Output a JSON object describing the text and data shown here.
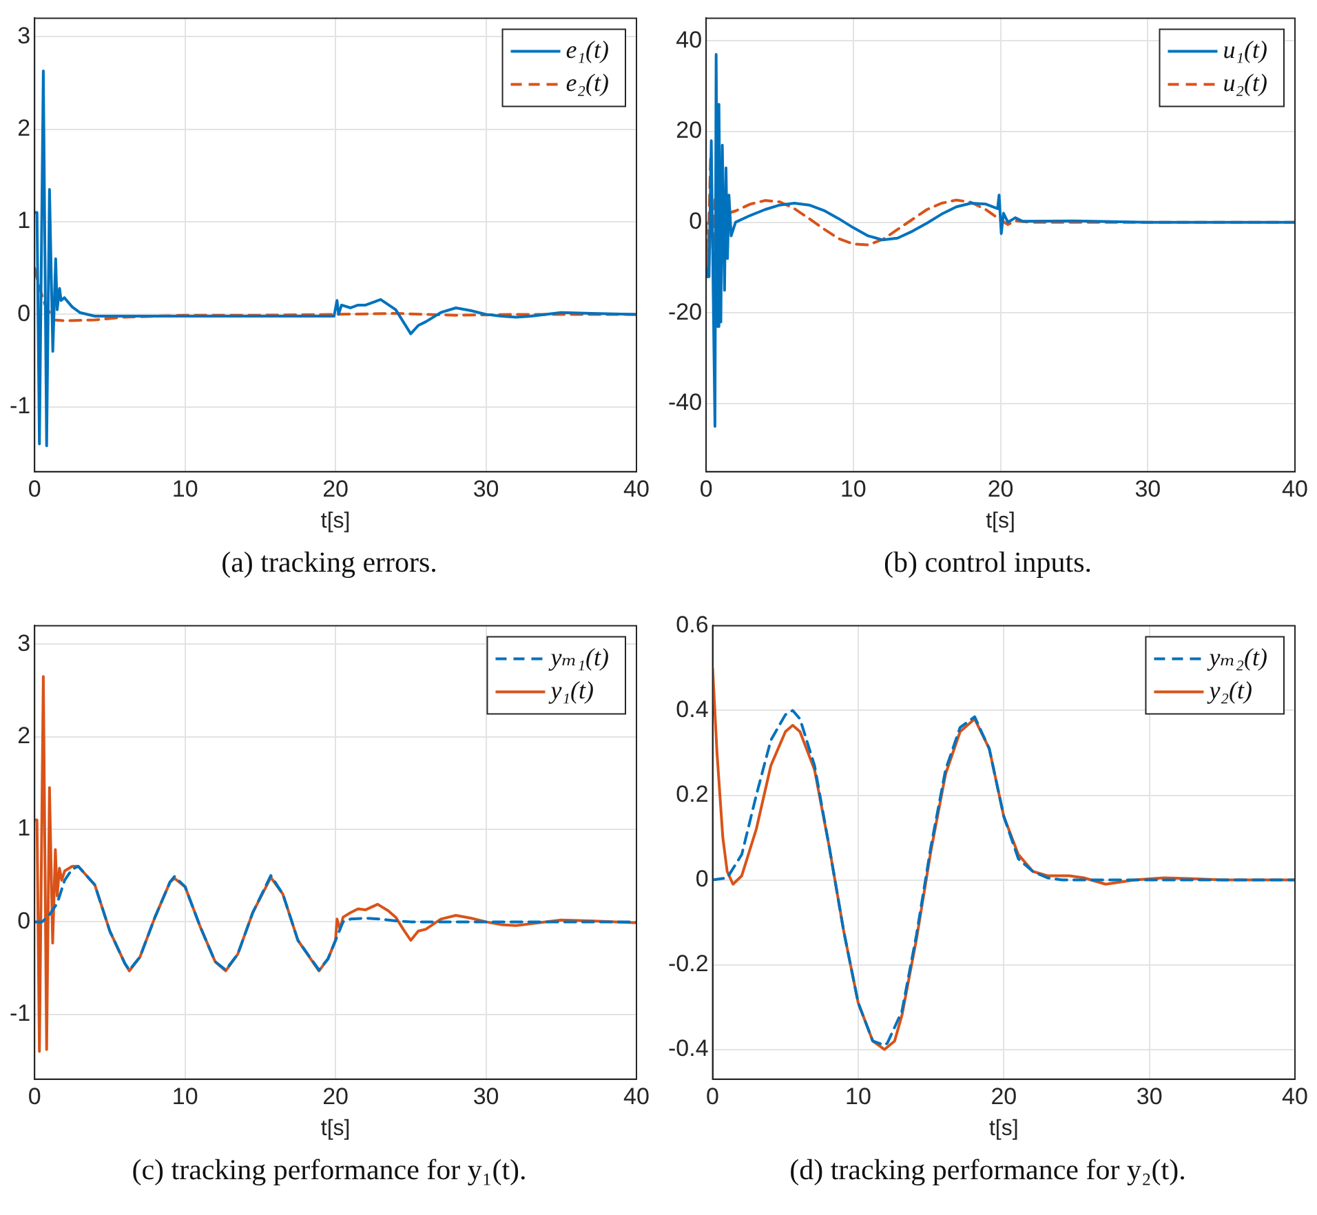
{
  "chart_data": [
    {
      "type": "line",
      "title": "(a) tracking errors.",
      "xlabel": "t[s]",
      "xlim": [
        0,
        40
      ],
      "xticks": [
        0,
        10,
        20,
        30,
        40
      ],
      "ylim": [
        -1.7,
        3.2
      ],
      "yticks": [
        -1,
        0,
        1,
        2,
        3
      ],
      "grid": true,
      "legend": "top right",
      "marker": "none",
      "series": [
        {
          "name": "e₁(t)",
          "color": "#0072bd",
          "line_style": "solid",
          "x": [
            0,
            0.16,
            0.32,
            0.58,
            0.8,
            0.99,
            1.21,
            1.4,
            1.5,
            1.66,
            1.76,
            1.98,
            2.5,
            3,
            4,
            6,
            10,
            15,
            19.9,
            20.1,
            20.2,
            20.4,
            21,
            21.5,
            22,
            23,
            24,
            24.5,
            25,
            25.5,
            26,
            27,
            28,
            29,
            30,
            31,
            32,
            33,
            35,
            37,
            40
          ],
          "values": [
            1.1,
            1.1,
            -1.4,
            2.63,
            -1.42,
            1.35,
            -0.4,
            0.6,
            0.05,
            0.28,
            0.15,
            0.18,
            0.08,
            0.02,
            -0.02,
            -0.02,
            -0.02,
            -0.02,
            -0.02,
            0.15,
            0,
            0.1,
            0.07,
            0.1,
            0.1,
            0.16,
            0.05,
            -0.08,
            -0.21,
            -0.12,
            -0.08,
            0.02,
            0.07,
            0.04,
            0,
            -0.02,
            -0.03,
            -0.02,
            0.02,
            0.01,
            0
          ]
        },
        {
          "name": "e₂(t)",
          "color": "#d95319",
          "line_style": "dashed",
          "x": [
            0,
            0.3,
            0.7,
            1,
            1.3,
            2,
            4,
            6,
            10,
            15,
            20,
            24,
            28,
            32,
            40
          ],
          "values": [
            0.5,
            0.3,
            0.1,
            0.02,
            -0.06,
            -0.07,
            -0.06,
            -0.03,
            -0.01,
            -0.01,
            0,
            0.01,
            -0.01,
            0,
            0
          ]
        }
      ]
    },
    {
      "type": "line",
      "title": "(b) control inputs.",
      "xlabel": "t[s]",
      "xlim": [
        0,
        40
      ],
      "xticks": [
        0,
        10,
        20,
        30,
        40
      ],
      "ylim": [
        -55,
        45
      ],
      "yticks": [
        -40,
        -20,
        0,
        20,
        40
      ],
      "grid": true,
      "legend": "top right",
      "marker": "none",
      "series": [
        {
          "name": "u₁(t)",
          "color": "#0072bd",
          "line_style": "solid",
          "x": [
            0,
            0.1,
            0.2,
            0.35,
            0.5,
            0.6,
            0.68,
            0.8,
            0.87,
            1,
            1.1,
            1.25,
            1.35,
            1.45,
            1.55,
            1.7,
            2,
            3,
            4,
            5,
            6,
            7,
            8,
            9,
            10,
            11,
            12,
            13,
            14,
            15,
            16,
            17,
            18,
            19,
            19.8,
            19.9,
            20.05,
            20.2,
            20.5,
            21,
            21.5,
            25,
            30,
            40
          ],
          "values": [
            -10,
            -12,
            -12,
            18,
            -20,
            -45,
            37,
            -23,
            26,
            -22,
            17,
            -15,
            12,
            -8,
            6,
            -3,
            0,
            1.5,
            2.8,
            3.8,
            4.2,
            3.8,
            2.6,
            0.8,
            -1.2,
            -3,
            -3.9,
            -3.5,
            -2,
            -0.2,
            1.8,
            3.4,
            4.2,
            4,
            3,
            6,
            -2.5,
            2,
            0,
            1,
            0.2,
            0.3,
            0,
            0
          ]
        },
        {
          "name": "u₂(t)",
          "color": "#d95319",
          "line_style": "dashed",
          "x": [
            0,
            0.1,
            0.3,
            0.5,
            0.6,
            0.8,
            1,
            1.5,
            2,
            3,
            4,
            5,
            6,
            7,
            8,
            9,
            10,
            11,
            12,
            13,
            14,
            15,
            16,
            17,
            18,
            19,
            20,
            20.5,
            21,
            22,
            40
          ],
          "values": [
            0,
            -12,
            14,
            -12,
            5,
            -3,
            1,
            2,
            2.5,
            4,
            4.8,
            4.5,
            3,
            0.8,
            -1.5,
            -3.6,
            -4.8,
            -5,
            -3.8,
            -1.6,
            0.6,
            2.8,
            4.2,
            4.9,
            4.4,
            2.8,
            0.5,
            -0.5,
            0.3,
            0,
            0
          ]
        }
      ]
    },
    {
      "type": "line",
      "title": "(c) tracking performance for y₁(t).",
      "xlabel": "t[s]",
      "xlim": [
        0,
        40
      ],
      "xticks": [
        0,
        10,
        20,
        30,
        40
      ],
      "ylim": [
        -1.7,
        3.2
      ],
      "yticks": [
        -1,
        0,
        1,
        2,
        3
      ],
      "grid": true,
      "legend": "top right",
      "marker": "none",
      "series": [
        {
          "name": "yₘ₁(t)",
          "color": "#0072bd",
          "line_style": "dashed",
          "x": [
            0,
            0.5,
            1,
            1.5,
            2,
            2.5,
            2.9,
            4,
            5,
            6,
            6.3,
            7,
            8,
            9,
            9.3,
            10,
            11,
            12,
            12.7,
            13.5,
            14.5,
            15.7,
            16.5,
            17.5,
            18.9,
            19.5,
            20,
            20.5,
            21,
            22,
            23,
            24,
            25,
            40
          ],
          "values": [
            0,
            0,
            0.08,
            0.2,
            0.45,
            0.57,
            0.6,
            0.4,
            -0.1,
            -0.45,
            -0.52,
            -0.38,
            0.05,
            0.43,
            0.49,
            0.38,
            -0.05,
            -0.43,
            -0.52,
            -0.35,
            0.1,
            0.5,
            0.3,
            -0.2,
            -0.52,
            -0.4,
            -0.2,
            0,
            0.03,
            0.04,
            0.03,
            0.01,
            0,
            0
          ]
        },
        {
          "name": "y₁(t)",
          "color": "#d95319",
          "line_style": "solid",
          "x": [
            0,
            0.16,
            0.32,
            0.58,
            0.8,
            0.99,
            1.2,
            1.38,
            1.5,
            1.65,
            1.8,
            2,
            2.5,
            2.9,
            4,
            5,
            6,
            6.3,
            7,
            8,
            9,
            9.3,
            10,
            11,
            12,
            12.7,
            13.5,
            14.5,
            15.7,
            16.5,
            17.5,
            18.9,
            19.5,
            20,
            20.1,
            20.3,
            20.5,
            21,
            21.5,
            22,
            22.8,
            23.5,
            24,
            24.5,
            25,
            25.5,
            26,
            27,
            28,
            29,
            30,
            31,
            32,
            33,
            35,
            37,
            40
          ],
          "values": [
            1.1,
            1.1,
            -1.4,
            2.65,
            -1.38,
            1.45,
            -0.23,
            0.78,
            0.28,
            0.58,
            0.45,
            0.55,
            0.6,
            0.6,
            0.4,
            -0.1,
            -0.45,
            -0.53,
            -0.38,
            0.05,
            0.43,
            0.47,
            0.38,
            -0.05,
            -0.43,
            -0.53,
            -0.35,
            0.1,
            0.48,
            0.3,
            -0.2,
            -0.53,
            -0.4,
            -0.2,
            0.03,
            -0.08,
            0.05,
            0.1,
            0.14,
            0.13,
            0.19,
            0.12,
            0.05,
            -0.08,
            -0.2,
            -0.1,
            -0.08,
            0.03,
            0.07,
            0.04,
            0,
            -0.03,
            -0.04,
            -0.02,
            0.02,
            0.01,
            -0.01
          ]
        }
      ]
    },
    {
      "type": "line",
      "title": "(d) tracking performance for y₂(t).",
      "xlabel": "t[s]",
      "xlim": [
        0,
        40
      ],
      "xticks": [
        0,
        10,
        20,
        30,
        40
      ],
      "ylim": [
        -0.47,
        0.6
      ],
      "yticks": [
        -0.4,
        -0.2,
        0,
        0.2,
        0.4,
        0.6
      ],
      "grid": true,
      "legend": "top right",
      "marker": "none",
      "series": [
        {
          "name": "yₘ₂(t)",
          "color": "#0072bd",
          "line_style": "dashed",
          "x": [
            0,
            1,
            2,
            3,
            4,
            5,
            5.5,
            6,
            7,
            8,
            9,
            10,
            11,
            11.8,
            12,
            13,
            14,
            15,
            16,
            17,
            18,
            19,
            20,
            21,
            22,
            23,
            24,
            40
          ],
          "values": [
            0,
            0.005,
            0.06,
            0.2,
            0.33,
            0.39,
            0.4,
            0.38,
            0.27,
            0.08,
            -0.12,
            -0.29,
            -0.38,
            -0.39,
            -0.385,
            -0.31,
            -0.13,
            0.08,
            0.26,
            0.36,
            0.385,
            0.31,
            0.15,
            0.05,
            0.02,
            0.005,
            0,
            0
          ]
        },
        {
          "name": "y₂(t)",
          "color": "#d95319",
          "line_style": "solid",
          "x": [
            0,
            0.3,
            0.7,
            1,
            1.4,
            2,
            3,
            4,
            5,
            5.5,
            6,
            7,
            8,
            9,
            10,
            11,
            11.8,
            12.5,
            13,
            14,
            15,
            16,
            17,
            18,
            19,
            20,
            21,
            22,
            23,
            24.5,
            25.5,
            27,
            29,
            31,
            33,
            35,
            40
          ],
          "values": [
            0.5,
            0.3,
            0.1,
            0.02,
            -0.01,
            0.01,
            0.12,
            0.27,
            0.35,
            0.365,
            0.35,
            0.26,
            0.08,
            -0.12,
            -0.29,
            -0.38,
            -0.4,
            -0.38,
            -0.32,
            -0.14,
            0.07,
            0.25,
            0.35,
            0.38,
            0.31,
            0.15,
            0.06,
            0.02,
            0.01,
            0.01,
            0.005,
            -0.01,
            0,
            0.005,
            0.003,
            0,
            0
          ]
        }
      ]
    }
  ]
}
